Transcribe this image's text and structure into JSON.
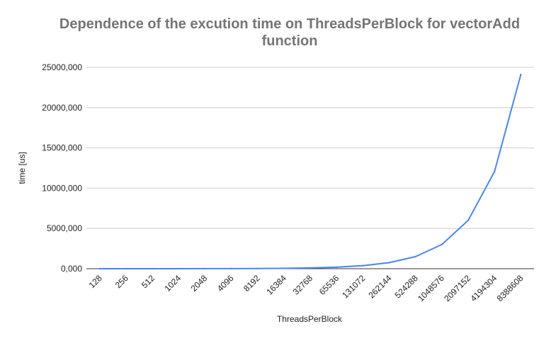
{
  "chart_data": {
    "type": "line",
    "title_lines": [
      "Dependence of the excution time on ThreadsPerBlock for vectorAdd",
      "function"
    ],
    "xlabel": "ThreadsPerBlock",
    "ylabel": "time [us]",
    "categories": [
      "128",
      "256",
      "512",
      "1024",
      "2048",
      "4096",
      "8192",
      "16384",
      "32768",
      "65536",
      "131072",
      "262144",
      "524288",
      "1048576",
      "2097152",
      "4194304",
      "8388608"
    ],
    "series": [
      {
        "color": "#4a86e8",
        "values": [
          400,
          800,
          1500,
          3000,
          5900,
          11800,
          23500,
          47000,
          94000,
          188000,
          376000,
          752000,
          1500000,
          3000000,
          6000000,
          12050000,
          24100000
        ]
      }
    ],
    "ylim": [
      0,
      25000000
    ],
    "yticks": [
      0,
      5000000,
      10000000,
      15000000,
      20000000,
      25000000
    ],
    "ytick_labels": [
      "0,000",
      "5000,000",
      "10000,000",
      "15000,000",
      "20000,000",
      "25000,000"
    ],
    "grid": true,
    "legend": "none"
  }
}
